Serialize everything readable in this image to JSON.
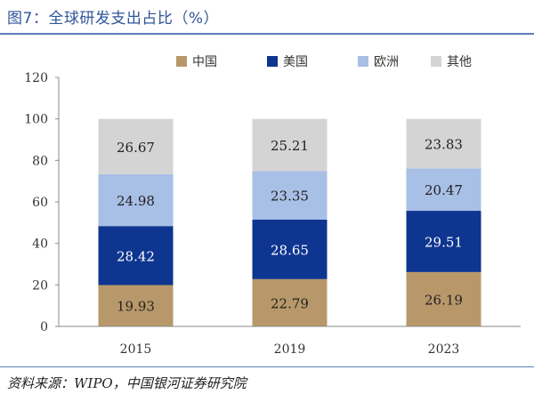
{
  "title": "图7：全球研发支出占比（%）",
  "source": "资料来源：WIPO，中国银河证券研究院",
  "chart_data": {
    "type": "bar",
    "stacked": true,
    "categories": [
      "2015",
      "2019",
      "2023"
    ],
    "series": [
      {
        "name": "中国",
        "color": "#b8986a",
        "values": [
          19.93,
          22.79,
          26.19
        ]
      },
      {
        "name": "美国",
        "color": "#0e3590",
        "values": [
          28.42,
          28.65,
          29.51
        ]
      },
      {
        "name": "欧洲",
        "color": "#a8bfe6",
        "values": [
          24.98,
          23.35,
          20.47
        ]
      },
      {
        "name": "其他",
        "color": "#d4d4d4",
        "values": [
          26.67,
          25.21,
          23.83
        ]
      }
    ],
    "ylim": [
      0,
      120
    ],
    "yticks": [
      0,
      20,
      40,
      60,
      80,
      100,
      120
    ],
    "label_colors": [
      "#222222",
      "#ffffff",
      "#222222",
      "#222222"
    ],
    "legend_position": "top-right"
  }
}
